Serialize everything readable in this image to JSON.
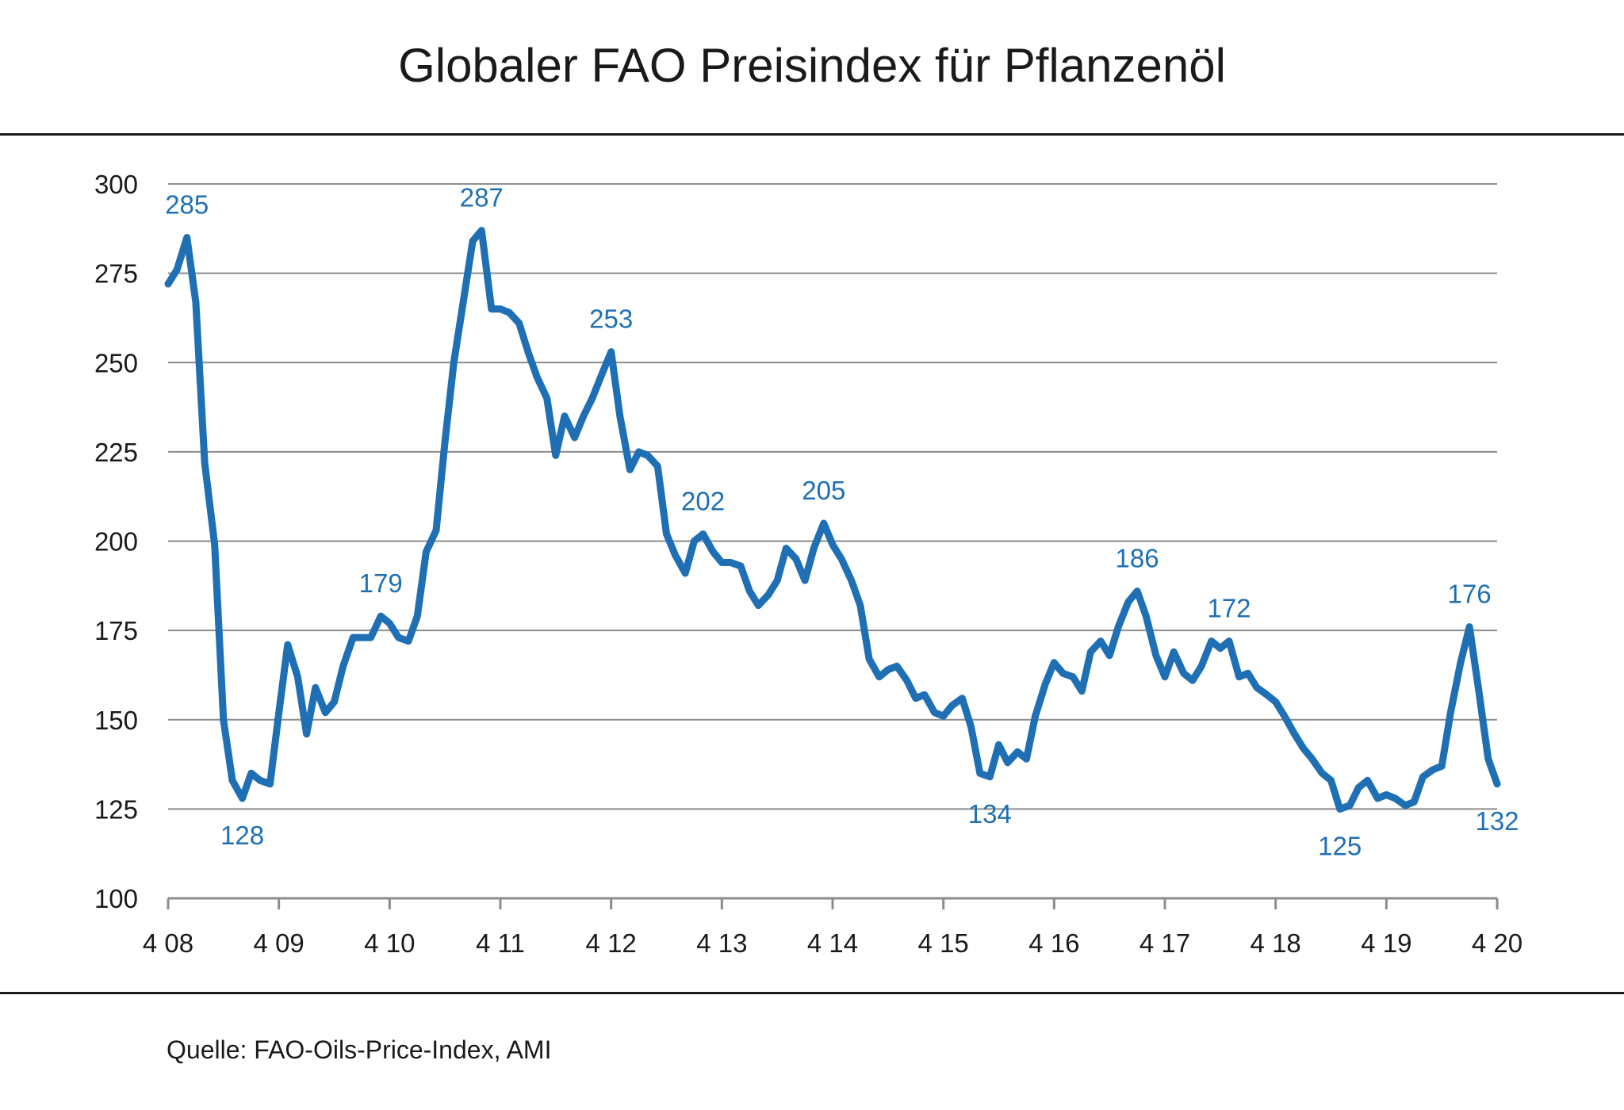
{
  "chart_data": {
    "type": "line",
    "title": "Globaler FAO Preisindex für Pflanzenöl",
    "source": "Quelle: FAO-Oils-Price-Index, AMI",
    "line_color": "#1f6fb5",
    "grid": true,
    "ylim": [
      100,
      300
    ],
    "yticks": [
      "100",
      "125",
      "150",
      "175",
      "200",
      "225",
      "250",
      "275",
      "300"
    ],
    "xlim": [
      2008.0,
      2020.0
    ],
    "xticks": [
      {
        "value": 2008,
        "label": "4 08"
      },
      {
        "value": 2009,
        "label": "4 09"
      },
      {
        "value": 2010,
        "label": "4 10"
      },
      {
        "value": 2011,
        "label": "4 11"
      },
      {
        "value": 2012,
        "label": "4 12"
      },
      {
        "value": 2013,
        "label": "4 13"
      },
      {
        "value": 2014,
        "label": "4 14"
      },
      {
        "value": 2015,
        "label": "4 15"
      },
      {
        "value": 2016,
        "label": "4 16"
      },
      {
        "value": 2017,
        "label": "4 17"
      },
      {
        "value": 2018,
        "label": "4 18"
      },
      {
        "value": 2019,
        "label": "4 19"
      },
      {
        "value": 2020,
        "label": "4 20"
      }
    ],
    "series": [
      {
        "x": [
          2008.0,
          2008.08,
          2008.17,
          2008.25,
          2008.33,
          2008.42,
          2008.5,
          2008.58,
          2008.67,
          2008.75,
          2008.83,
          2008.92,
          2009.0,
          2009.08,
          2009.17,
          2009.25,
          2009.33,
          2009.42,
          2009.5,
          2009.58,
          2009.67,
          2009.75,
          2009.83,
          2009.92,
          2010.0,
          2010.08,
          2010.17,
          2010.25,
          2010.33,
          2010.42,
          2010.5,
          2010.58,
          2010.67,
          2010.75,
          2010.83,
          2010.92,
          2011.0,
          2011.08,
          2011.17,
          2011.25,
          2011.33,
          2011.42,
          2011.5,
          2011.58,
          2011.67,
          2011.75,
          2011.83,
          2011.92,
          2012.0,
          2012.08,
          2012.17,
          2012.25,
          2012.33,
          2012.42,
          2012.5,
          2012.58,
          2012.67,
          2012.75,
          2012.83,
          2012.92,
          2013.0,
          2013.08,
          2013.17,
          2013.25,
          2013.33,
          2013.42,
          2013.5,
          2013.58,
          2013.67,
          2013.75,
          2013.83,
          2013.92,
          2014.0,
          2014.08,
          2014.17,
          2014.25,
          2014.33,
          2014.42,
          2014.5,
          2014.58,
          2014.67,
          2014.75,
          2014.83,
          2014.92,
          2015.0,
          2015.08,
          2015.17,
          2015.25,
          2015.33,
          2015.42,
          2015.5,
          2015.58,
          2015.67,
          2015.75,
          2015.83,
          2015.92,
          2016.0,
          2016.08,
          2016.17,
          2016.25,
          2016.33,
          2016.42,
          2016.5,
          2016.58,
          2016.67,
          2016.75,
          2016.83,
          2016.92,
          2017.0,
          2017.08,
          2017.17,
          2017.25,
          2017.33,
          2017.42,
          2017.5,
          2017.58,
          2017.67,
          2017.75,
          2017.83,
          2017.92,
          2018.0,
          2018.08,
          2018.17,
          2018.25,
          2018.33,
          2018.42,
          2018.5,
          2018.58,
          2018.67,
          2018.75,
          2018.83,
          2018.92,
          2019.0,
          2019.08,
          2019.17,
          2019.25,
          2019.33,
          2019.42,
          2019.5,
          2019.58,
          2019.67,
          2019.75,
          2019.83,
          2019.92,
          2020.0
        ],
        "values": [
          272,
          276,
          285,
          267,
          222,
          199,
          150,
          133,
          128,
          135,
          133,
          132,
          152,
          171,
          162,
          146,
          159,
          152,
          155,
          165,
          173,
          173,
          173,
          179,
          177,
          173,
          172,
          179,
          197,
          203,
          228,
          250,
          268,
          284,
          287,
          265,
          265,
          264,
          261,
          253,
          246,
          240,
          224,
          235,
          229,
          235,
          240,
          247,
          253,
          235,
          220,
          225,
          224,
          221,
          202,
          196,
          191,
          200,
          202,
          197,
          194,
          194,
          193,
          186,
          182,
          185,
          189,
          198,
          195,
          189,
          198,
          205,
          199,
          195,
          189,
          182,
          167,
          162,
          164,
          165,
          161,
          156,
          157,
          152,
          151,
          154,
          156,
          148,
          135,
          134,
          143,
          138,
          141,
          139,
          151,
          160,
          166,
          163,
          162,
          158,
          169,
          172,
          168,
          176,
          183,
          186,
          179,
          168,
          162,
          169,
          163,
          161,
          165,
          172,
          170,
          172,
          162,
          163,
          159,
          157,
          155,
          151,
          146,
          142,
          139,
          135,
          133,
          125,
          126,
          131,
          133,
          128,
          129,
          128,
          126,
          127,
          134,
          136,
          137,
          152,
          166,
          176,
          159,
          139,
          132
        ]
      }
    ],
    "annotations": [
      {
        "text": "285",
        "x": 2008.17,
        "y": 285,
        "pos": "above"
      },
      {
        "text": "128",
        "x": 2008.67,
        "y": 128,
        "pos": "below"
      },
      {
        "text": "179",
        "x": 2009.92,
        "y": 179,
        "pos": "above"
      },
      {
        "text": "287",
        "x": 2010.83,
        "y": 287,
        "pos": "above"
      },
      {
        "text": "253",
        "x": 2012.0,
        "y": 253,
        "pos": "above"
      },
      {
        "text": "202",
        "x": 2012.83,
        "y": 202,
        "pos": "above"
      },
      {
        "text": "205",
        "x": 2013.92,
        "y": 205,
        "pos": "above"
      },
      {
        "text": "134",
        "x": 2015.42,
        "y": 134,
        "pos": "below"
      },
      {
        "text": "186",
        "x": 2016.75,
        "y": 186,
        "pos": "above"
      },
      {
        "text": "172",
        "x": 2017.58,
        "y": 172,
        "pos": "above"
      },
      {
        "text": "125",
        "x": 2018.58,
        "y": 125,
        "pos": "below"
      },
      {
        "text": "176",
        "x": 2019.75,
        "y": 176,
        "pos": "above"
      },
      {
        "text": "132",
        "x": 2020.0,
        "y": 132,
        "pos": "below"
      }
    ]
  }
}
